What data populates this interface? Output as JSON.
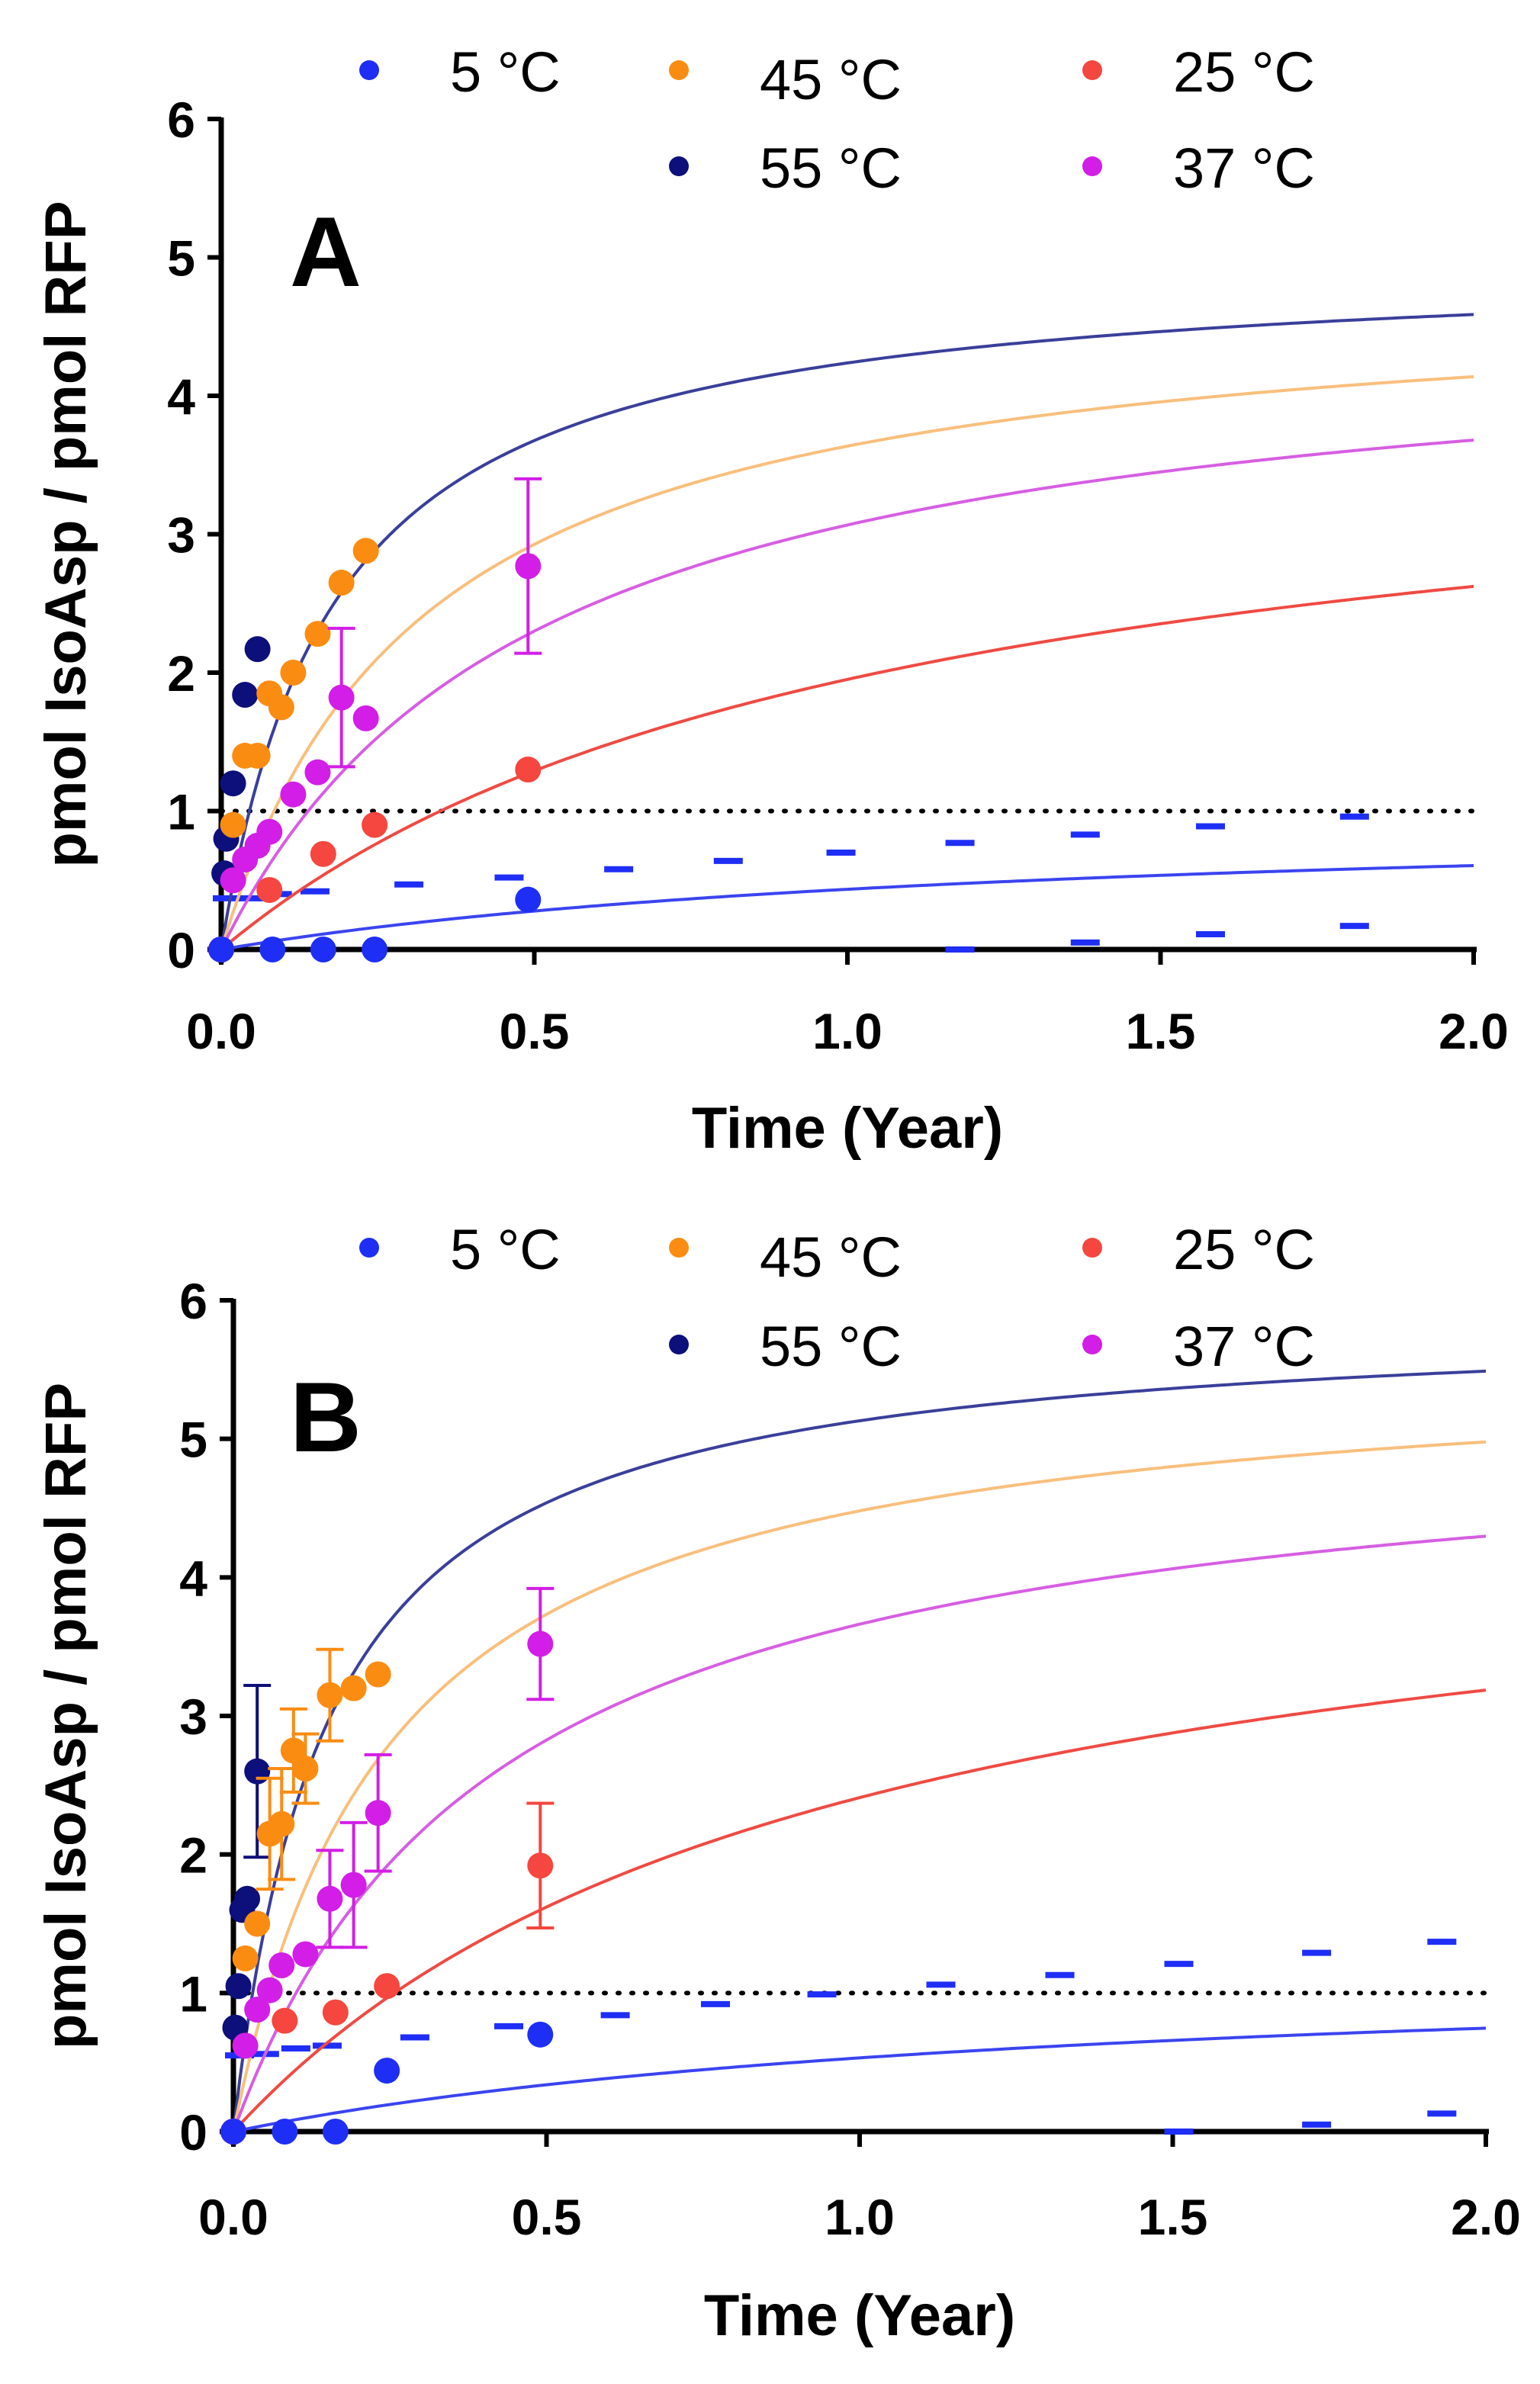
{
  "chart_data": [
    {
      "type": "scatter",
      "panel_label": "A",
      "xlabel": "Time (Year)",
      "ylabel": "pmol IsoAsp / pmol RFP",
      "xlim": [
        0,
        2.0
      ],
      "ylim": [
        0,
        6
      ],
      "xticks": [
        0.0,
        0.5,
        1.0,
        1.5,
        2.0
      ],
      "xtick_labels": [
        "0.0",
        "0.5",
        "1.0",
        "1.5",
        "2.0"
      ],
      "yticks": [
        0,
        1,
        2,
        3,
        4,
        5,
        6
      ],
      "ytick_labels": [
        "0",
        "1",
        "2",
        "3",
        "4",
        "5",
        "6"
      ],
      "reference_line": {
        "y": 1,
        "style": "dotted",
        "color": "#000000"
      },
      "legend": [
        {
          "name": "5 °C",
          "color": "#1f2ef5"
        },
        {
          "name": "45 °C",
          "color": "#fb8c12"
        },
        {
          "name": "25 °C",
          "color": "#f5463f"
        },
        {
          "name": "55 °C",
          "color": "#0d0f7a"
        },
        {
          "name": "37 °C",
          "color": "#d21ee6"
        }
      ],
      "series": [
        {
          "name": "55 °C",
          "color": "#0d0f7a",
          "fit_color": "#3a3f9a",
          "fit_max": 5.0,
          "fit_half": 0.18,
          "points": [
            {
              "x": 0.0,
              "y": 0.0
            },
            {
              "x": 0.005,
              "y": 0.55
            },
            {
              "x": 0.008,
              "y": 0.8
            },
            {
              "x": 0.019,
              "y": 1.2
            },
            {
              "x": 0.038,
              "y": 1.84
            },
            {
              "x": 0.058,
              "y": 2.17
            }
          ]
        },
        {
          "name": "45 °C",
          "color": "#fb8c12",
          "fit_color": "#f8bf7c",
          "fit_max": 4.8,
          "fit_half": 0.32,
          "points": [
            {
              "x": 0.0,
              "y": 0.0
            },
            {
              "x": 0.019,
              "y": 0.9
            },
            {
              "x": 0.038,
              "y": 1.4
            },
            {
              "x": 0.058,
              "y": 1.4
            },
            {
              "x": 0.077,
              "y": 1.85
            },
            {
              "x": 0.096,
              "y": 1.75
            },
            {
              "x": 0.115,
              "y": 2.0
            },
            {
              "x": 0.154,
              "y": 2.28
            },
            {
              "x": 0.192,
              "y": 2.65
            },
            {
              "x": 0.231,
              "y": 2.88
            }
          ]
        },
        {
          "name": "37 °C",
          "color": "#d21ee6",
          "fit_color": "#d65ee2",
          "fit_max": 4.6,
          "fit_half": 0.5,
          "points": [
            {
              "x": 0.0,
              "y": 0.0
            },
            {
              "x": 0.019,
              "y": 0.5
            },
            {
              "x": 0.038,
              "y": 0.65
            },
            {
              "x": 0.058,
              "y": 0.75
            },
            {
              "x": 0.077,
              "y": 0.85
            },
            {
              "x": 0.115,
              "y": 1.12
            },
            {
              "x": 0.154,
              "y": 1.28
            },
            {
              "x": 0.192,
              "y": 1.82,
              "err": 0.5
            },
            {
              "x": 0.231,
              "y": 1.67
            },
            {
              "x": 0.49,
              "y": 2.77,
              "err": 0.63
            }
          ]
        },
        {
          "name": "25 °C",
          "color": "#f5463f",
          "fit_color": "#ef4a43",
          "fit_max": 4.0,
          "fit_half": 1.05,
          "points": [
            {
              "x": 0.0,
              "y": 0.0
            },
            {
              "x": 0.077,
              "y": 0.43
            },
            {
              "x": 0.163,
              "y": 0.69
            },
            {
              "x": 0.245,
              "y": 0.9
            },
            {
              "x": 0.49,
              "y": 1.3
            }
          ]
        },
        {
          "name": "5 °C",
          "color": "#1f2ef5",
          "fit_color": "#3b44f0",
          "fit_max": 1.0,
          "fit_half": 1.3,
          "points": [
            {
              "x": 0.0,
              "y": 0.0
            },
            {
              "x": 0.082,
              "y": 0.0
            },
            {
              "x": 0.163,
              "y": 0.0
            },
            {
              "x": 0.245,
              "y": 0.0
            },
            {
              "x": 0.49,
              "y": 0.36
            }
          ]
        }
      ],
      "dashes": {
        "color": "#1f2ef5",
        "upper": [
          {
            "x": 0.0,
            "y": 0.37
          },
          {
            "x": 0.04,
            "y": 0.37
          },
          {
            "x": 0.08,
            "y": 0.4
          },
          {
            "x": 0.14,
            "y": 0.42
          },
          {
            "x": 0.29,
            "y": 0.47
          },
          {
            "x": 0.45,
            "y": 0.52
          },
          {
            "x": 0.625,
            "y": 0.58
          },
          {
            "x": 0.8,
            "y": 0.64
          },
          {
            "x": 0.98,
            "y": 0.7
          },
          {
            "x": 1.17,
            "y": 0.77
          },
          {
            "x": 1.37,
            "y": 0.83
          },
          {
            "x": 1.57,
            "y": 0.89
          },
          {
            "x": 1.8,
            "y": 0.96
          }
        ],
        "lower": [
          {
            "x": 1.17,
            "y": 0.0
          },
          {
            "x": 1.37,
            "y": 0.05
          },
          {
            "x": 1.57,
            "y": 0.11
          },
          {
            "x": 1.8,
            "y": 0.17
          }
        ]
      }
    },
    {
      "type": "scatter",
      "panel_label": "B",
      "xlabel": "Time (Year)",
      "ylabel": "pmol IsoAsp / pmol RFP",
      "xlim": [
        0,
        2.0
      ],
      "ylim": [
        0,
        6
      ],
      "xticks": [
        0.0,
        0.5,
        1.0,
        1.5,
        2.0
      ],
      "xtick_labels": [
        "0.0",
        "0.5",
        "1.0",
        "1.5",
        "2.0"
      ],
      "yticks": [
        0,
        1,
        2,
        3,
        4,
        5,
        6
      ],
      "ytick_labels": [
        "0",
        "1",
        "2",
        "3",
        "4",
        "5",
        "6"
      ],
      "reference_line": {
        "y": 1,
        "style": "dotted",
        "color": "#000000"
      },
      "legend": [
        {
          "name": "5 °C",
          "color": "#1f2ef5"
        },
        {
          "name": "45 °C",
          "color": "#fb8c12"
        },
        {
          "name": "25 °C",
          "color": "#f5463f"
        },
        {
          "name": "55 °C",
          "color": "#0d0f7a"
        },
        {
          "name": "37 °C",
          "color": "#d21ee6"
        }
      ],
      "series": [
        {
          "name": "55 °C",
          "color": "#0d0f7a",
          "fit_color": "#3a3f9a",
          "fit_max": 5.9,
          "fit_half": 0.15,
          "points": [
            {
              "x": 0.0,
              "y": 0.0
            },
            {
              "x": 0.003,
              "y": 0.75
            },
            {
              "x": 0.008,
              "y": 1.05
            },
            {
              "x": 0.014,
              "y": 1.6
            },
            {
              "x": 0.022,
              "y": 1.68
            },
            {
              "x": 0.038,
              "y": 2.6,
              "err": 0.62
            }
          ]
        },
        {
          "name": "45 °C",
          "color": "#fb8c12",
          "fit_color": "#f8bf7c",
          "fit_max": 5.6,
          "fit_half": 0.25,
          "points": [
            {
              "x": 0.0,
              "y": 0.0
            },
            {
              "x": 0.019,
              "y": 1.25
            },
            {
              "x": 0.038,
              "y": 1.5
            },
            {
              "x": 0.058,
              "y": 2.15,
              "err": 0.4
            },
            {
              "x": 0.077,
              "y": 2.22,
              "err": 0.4
            },
            {
              "x": 0.096,
              "y": 2.75,
              "err": 0.3
            },
            {
              "x": 0.115,
              "y": 2.62,
              "err": 0.25
            },
            {
              "x": 0.154,
              "y": 3.15,
              "err": 0.33
            },
            {
              "x": 0.192,
              "y": 3.2
            },
            {
              "x": 0.231,
              "y": 3.3
            }
          ]
        },
        {
          "name": "37 °C",
          "color": "#d21ee6",
          "fit_color": "#d65ee2",
          "fit_max": 5.2,
          "fit_half": 0.42,
          "points": [
            {
              "x": 0.0,
              "y": 0.0
            },
            {
              "x": 0.019,
              "y": 0.62
            },
            {
              "x": 0.038,
              "y": 0.88
            },
            {
              "x": 0.058,
              "y": 1.02
            },
            {
              "x": 0.077,
              "y": 1.2
            },
            {
              "x": 0.115,
              "y": 1.28
            },
            {
              "x": 0.154,
              "y": 1.68,
              "err": 0.35
            },
            {
              "x": 0.192,
              "y": 1.78,
              "err": 0.45
            },
            {
              "x": 0.231,
              "y": 2.3,
              "err": 0.42
            },
            {
              "x": 0.49,
              "y": 3.52,
              "err": 0.4
            }
          ]
        },
        {
          "name": "25 °C",
          "color": "#f5463f",
          "fit_color": "#ef4a43",
          "fit_max": 4.7,
          "fit_half": 0.95,
          "points": [
            {
              "x": 0.0,
              "y": 0.0
            },
            {
              "x": 0.082,
              "y": 0.8
            },
            {
              "x": 0.163,
              "y": 0.86
            },
            {
              "x": 0.245,
              "y": 1.05
            },
            {
              "x": 0.49,
              "y": 1.92,
              "err": 0.45
            }
          ]
        },
        {
          "name": "5 °C",
          "color": "#1f2ef5",
          "fit_color": "#3b44f0",
          "fit_max": 1.25,
          "fit_half": 1.35,
          "points": [
            {
              "x": 0.0,
              "y": 0.0
            },
            {
              "x": 0.082,
              "y": 0.0
            },
            {
              "x": 0.163,
              "y": 0.0
            },
            {
              "x": 0.245,
              "y": 0.44
            },
            {
              "x": 0.49,
              "y": 0.7
            }
          ]
        }
      ],
      "dashes": {
        "color": "#1f2ef5",
        "upper": [
          {
            "x": 0.0,
            "y": 0.55
          },
          {
            "x": 0.04,
            "y": 0.56
          },
          {
            "x": 0.09,
            "y": 0.6
          },
          {
            "x": 0.14,
            "y": 0.62
          },
          {
            "x": 0.28,
            "y": 0.68
          },
          {
            "x": 0.43,
            "y": 0.76
          },
          {
            "x": 0.6,
            "y": 0.84
          },
          {
            "x": 0.76,
            "y": 0.92
          },
          {
            "x": 0.93,
            "y": 0.99
          },
          {
            "x": 1.12,
            "y": 1.06
          },
          {
            "x": 1.31,
            "y": 1.13
          },
          {
            "x": 1.5,
            "y": 1.21
          },
          {
            "x": 1.72,
            "y": 1.29
          },
          {
            "x": 1.92,
            "y": 1.37
          }
        ],
        "lower": [
          {
            "x": 1.5,
            "y": 0.0
          },
          {
            "x": 1.72,
            "y": 0.05
          },
          {
            "x": 1.92,
            "y": 0.13
          }
        ]
      }
    }
  ]
}
